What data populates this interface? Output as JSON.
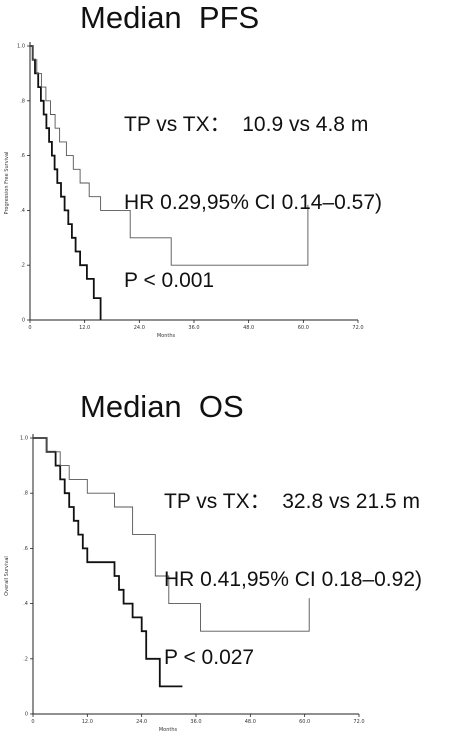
{
  "panels": [
    {
      "title": "Median  PFS",
      "stats": [
        "TP vs TX：  10.9 vs 4.8 m",
        "HR 0.29,95% CI 0.14–0.57)",
        "P < 0.001"
      ]
    },
    {
      "title": "Median  OS",
      "stats": [
        "TP vs TX：  32.8 vs 21.5 m",
        "HR 0.41,95% CI 0.18–0.92)",
        "P < 0.027"
      ]
    }
  ],
  "chart_data": [
    {
      "type": "line",
      "title": "Median  PFS",
      "xlabel": "Months",
      "ylabel": "Progression Free Survival",
      "xlim": [
        0,
        60
      ],
      "ylim": [
        0,
        1.0
      ],
      "x_ticks": [
        "0",
        "12.0",
        "24.0",
        "36.0",
        "48.0",
        "60.0",
        "72.0"
      ],
      "y_ticks": [
        "0",
        ".2",
        ".4",
        ".6",
        ".8",
        "1.0"
      ],
      "grid": false,
      "series": [
        {
          "x": [
            0,
            0.6,
            0.6,
            1.1,
            1.1,
            1.8,
            1.8,
            2.4,
            2.4,
            3.0,
            3.0,
            3.6,
            3.6,
            4.2,
            4.2,
            4.8,
            4.8,
            5.4,
            5.4,
            6.0,
            6.0,
            6.8,
            6.8,
            7.6,
            7.6,
            8.4,
            8.4,
            9.2,
            9.2,
            10.0,
            10.0,
            11.0,
            11.0,
            12.5,
            12.5,
            14.0,
            14.0,
            15.5,
            15.5
          ],
          "y": [
            1.0,
            1.0,
            0.95,
            0.95,
            0.9,
            0.9,
            0.85,
            0.85,
            0.8,
            0.8,
            0.75,
            0.75,
            0.7,
            0.7,
            0.65,
            0.65,
            0.6,
            0.6,
            0.55,
            0.55,
            0.5,
            0.5,
            0.45,
            0.45,
            0.4,
            0.4,
            0.35,
            0.35,
            0.3,
            0.3,
            0.25,
            0.25,
            0.2,
            0.2,
            0.15,
            0.15,
            0.08,
            0.08,
            0.0
          ],
          "weight": "bold"
        },
        {
          "x": [
            0,
            0.6,
            0.6,
            1.5,
            1.5,
            2.5,
            2.5,
            3.5,
            3.5,
            4.5,
            4.5,
            5.5,
            5.5,
            6.5,
            6.5,
            8.0,
            8.0,
            9.5,
            9.5,
            11.0,
            11.0,
            13.0,
            13.0,
            15.5,
            15.5,
            22.0,
            22.0,
            31.0,
            31.0,
            61.0,
            61.0
          ],
          "y": [
            1.0,
            1.0,
            0.95,
            0.95,
            0.9,
            0.9,
            0.85,
            0.85,
            0.8,
            0.8,
            0.75,
            0.75,
            0.7,
            0.7,
            0.65,
            0.65,
            0.6,
            0.6,
            0.55,
            0.55,
            0.5,
            0.5,
            0.45,
            0.45,
            0.4,
            0.4,
            0.3,
            0.3,
            0.2,
            0.2,
            0.42
          ],
          "weight": "thin"
        }
      ]
    },
    {
      "type": "line",
      "title": "Median  OS",
      "xlabel": "Months",
      "ylabel": "Overall Survival",
      "xlim": [
        0,
        60
      ],
      "ylim": [
        0,
        1.0
      ],
      "x_ticks": [
        "0",
        "12.0",
        "24.0",
        "36.0",
        "48.0",
        "60.0",
        "72.0"
      ],
      "y_ticks": [
        "0",
        ".2",
        ".4",
        ".6",
        ".8",
        "1.0"
      ],
      "grid": false,
      "series": [
        {
          "x": [
            0,
            3.0,
            3.0,
            5.0,
            5.0,
            6.0,
            6.0,
            7.0,
            7.0,
            8.0,
            8.0,
            9.0,
            9.0,
            10.0,
            10.0,
            11.0,
            11.0,
            12.0,
            12.0,
            18.0,
            18.0,
            19.0,
            19.0,
            20.0,
            20.0,
            22.0,
            22.0,
            24.0,
            24.0,
            25.0,
            25.0,
            28.0,
            28.0,
            33.0
          ],
          "y": [
            1.0,
            1.0,
            0.95,
            0.95,
            0.9,
            0.9,
            0.85,
            0.85,
            0.8,
            0.8,
            0.75,
            0.75,
            0.7,
            0.7,
            0.65,
            0.65,
            0.6,
            0.6,
            0.55,
            0.55,
            0.5,
            0.5,
            0.45,
            0.45,
            0.4,
            0.4,
            0.35,
            0.35,
            0.3,
            0.3,
            0.2,
            0.2,
            0.1,
            0.1
          ],
          "weight": "bold"
        },
        {
          "x": [
            0,
            3.0,
            3.0,
            6.0,
            6.0,
            8.0,
            8.0,
            12.0,
            12.0,
            18.0,
            18.0,
            22.0,
            22.0,
            27.0,
            27.0,
            30.0,
            30.0,
            37.0,
            37.0,
            61.0,
            61.0
          ],
          "y": [
            1.0,
            1.0,
            0.95,
            0.95,
            0.9,
            0.9,
            0.85,
            0.85,
            0.8,
            0.8,
            0.75,
            0.75,
            0.65,
            0.65,
            0.5,
            0.5,
            0.4,
            0.4,
            0.3,
            0.3,
            0.42
          ],
          "weight": "thin"
        }
      ]
    }
  ]
}
